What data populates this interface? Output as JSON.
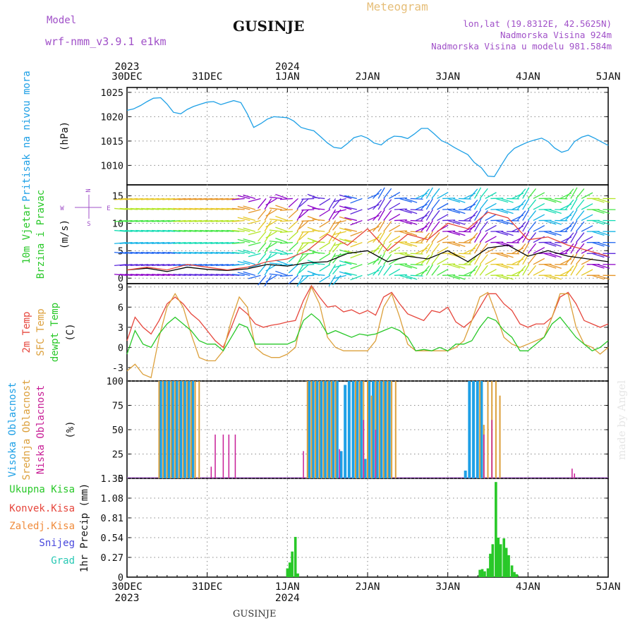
{
  "header": {
    "model_label": "Model",
    "model_name": "wrf-nmm_v3.9.1 e1km",
    "station": "GUSINJE",
    "product": "Meteogram",
    "lonlat": "lon,lat (19.8312E, 42.5625N)",
    "elevation": "Nadmorska Visina 924m",
    "model_elevation": "Nadmorska Visina u modelu 981.584m",
    "watermark": "made by Angel",
    "footer_station": "GUSINJE"
  },
  "colors": {
    "pressure": "#1ea0e6",
    "temp2m": "#e6463c",
    "sfc_temp": "#dca03c",
    "dewpoint": "#28c828",
    "high_cloud": "#1ea0e6",
    "mid_cloud": "#dca03c",
    "low_cloud": "#c81e96",
    "total_precip": "#28c828",
    "conv_precip": "#e6463c",
    "freezing_precip": "#f08c3c",
    "snow": "#4646dc",
    "hail": "#28c8b4",
    "title_purple": "#a050c8",
    "title_gold": "#e6be78"
  },
  "time_axis": {
    "top_years": [
      {
        "label": "2023",
        "day": 0
      },
      {
        "label": "2024",
        "day": 2
      }
    ],
    "days": [
      "30DEC",
      "31DEC",
      "1JAN",
      "2JAN",
      "3JAN",
      "4JAN",
      "5JAN"
    ],
    "bottom_years": [
      {
        "label": "2023",
        "day": 0
      },
      {
        "label": "2024",
        "day": 2
      }
    ]
  },
  "chart_data": [
    {
      "type": "line",
      "panel": "pressure",
      "ylabel_left": "Pritisak na nivou mora",
      "ylabel_unit": "(hPa)",
      "ylim": [
        1006,
        1026
      ],
      "yticks": [
        1010,
        1015,
        1020,
        1025
      ],
      "series": [
        {
          "x": [
            0,
            0.08,
            0.17,
            0.25,
            0.33,
            0.42,
            0.5,
            0.58,
            0.67,
            0.75,
            0.83,
            0.92,
            1.0,
            1.08,
            1.17,
            1.25,
            1.33,
            1.42,
            1.5,
            1.58,
            1.67,
            1.75,
            1.83,
            1.92,
            2.0,
            2.08,
            2.17,
            2.25,
            2.33,
            2.42,
            2.5,
            2.58,
            2.67,
            2.75,
            2.83,
            2.92,
            3.0,
            3.08,
            3.17,
            3.25,
            3.33,
            3.42,
            3.5,
            3.58,
            3.67,
            3.75,
            3.83,
            3.92,
            4.0,
            4.08,
            4.17,
            4.25,
            4.33,
            4.42,
            4.5,
            4.58,
            4.67,
            4.75,
            4.83,
            4.92,
            5.0,
            5.08,
            5.17,
            5.25,
            5.33,
            5.42,
            5.5,
            5.58,
            5.67,
            5.75,
            5.83,
            5.92,
            6.0
          ],
          "y": [
            1021.3,
            1021.6,
            1022.3,
            1023.1,
            1023.8,
            1023.9,
            1022.6,
            1020.9,
            1020.6,
            1021.5,
            1022.1,
            1022.6,
            1023.0,
            1023.1,
            1022.5,
            1022.9,
            1023.3,
            1022.9,
            1020.6,
            1017.8,
            1018.6,
            1019.5,
            1020.0,
            1019.9,
            1019.8,
            1019.1,
            1017.8,
            1017.4,
            1017.1,
            1015.8,
            1014.6,
            1013.7,
            1013.5,
            1014.5,
            1015.7,
            1016.1,
            1015.6,
            1014.6,
            1014.2,
            1015.3,
            1016.0,
            1015.9,
            1015.5,
            1016.4,
            1017.6,
            1017.6,
            1016.5,
            1015.1,
            1014.5,
            1013.7,
            1012.9,
            1012.2,
            1010.6,
            1009.5,
            1007.8,
            1007.7,
            1010.1,
            1012.2,
            1013.5,
            1014.2,
            1014.8,
            1015.2,
            1015.6,
            1014.9,
            1013.6,
            1012.7,
            1013.1,
            1014.9,
            1015.8,
            1016.2,
            1015.6,
            1014.8,
            1014.1
          ]
        }
      ]
    },
    {
      "type": "vector",
      "panel": "wind",
      "ylabel_left": "10m Vjetar Brzina i Pravac",
      "ylabel_unit": "(m/s)",
      "ylim": [
        -1,
        17
      ],
      "yticks": [
        0,
        5,
        10,
        15
      ],
      "compass": {
        "n": "N",
        "s": "S",
        "w": "W",
        "e": "E"
      },
      "speed_x": [
        0,
        0.25,
        0.5,
        0.75,
        1.0,
        1.25,
        1.5,
        1.75,
        2.0,
        2.25,
        2.5,
        2.75,
        3.0,
        3.25,
        3.5,
        3.75,
        4.0,
        4.25,
        4.5,
        4.75,
        5.0,
        5.25,
        5.5,
        5.75,
        6.0
      ],
      "speed_y": [
        1.5,
        1.8,
        1.2,
        2.0,
        1.6,
        1.4,
        1.7,
        2.5,
        2.2,
        2.8,
        3.0,
        4.5,
        5.0,
        3.0,
        4.0,
        3.5,
        5.0,
        3.0,
        5.5,
        6.0,
        4.0,
        5.0,
        4.0,
        3.5,
        3.0
      ],
      "gust_y": [
        1.5,
        2.0,
        1.5,
        2.5,
        2.0,
        1.5,
        2.0,
        3.0,
        3.5,
        5.0,
        8.0,
        6.0,
        9.0,
        5.0,
        8.0,
        7.0,
        10.0,
        9.0,
        12.0,
        11.0,
        7.0,
        7.5,
        6.0,
        5.0,
        4.0
      ]
    },
    {
      "type": "line",
      "panel": "temperature",
      "ylabel_left": [
        "2m Temp",
        "SFC Temp",
        "dewpt Temp"
      ],
      "ylabel_unit": "(C)",
      "ylim": [
        -5,
        9.5
      ],
      "yticks": [
        -3,
        0,
        3,
        6,
        9
      ],
      "series": [
        {
          "name": "2m Temp",
          "x": [
            0,
            0.1,
            0.2,
            0.3,
            0.4,
            0.5,
            0.6,
            0.7,
            0.8,
            0.9,
            1.0,
            1.1,
            1.2,
            1.3,
            1.4,
            1.5,
            1.6,
            1.7,
            1.8,
            1.9,
            2.0,
            2.1,
            2.2,
            2.3,
            2.4,
            2.5,
            2.6,
            2.7,
            2.8,
            2.9,
            3.0,
            3.1,
            3.2,
            3.3,
            3.4,
            3.5,
            3.6,
            3.7,
            3.8,
            3.9,
            4.0,
            4.1,
            4.2,
            4.3,
            4.4,
            4.5,
            4.6,
            4.7,
            4.8,
            4.9,
            5.0,
            5.1,
            5.2,
            5.3,
            5.4,
            5.5,
            5.6,
            5.7,
            5.8,
            5.9,
            6.0
          ],
          "y": [
            1.0,
            4.5,
            3.0,
            2.0,
            4.0,
            6.5,
            7.5,
            6.5,
            5.0,
            4.0,
            2.5,
            1.0,
            0.0,
            3.0,
            6.0,
            5.0,
            3.5,
            3.0,
            3.3,
            3.5,
            3.8,
            4.0,
            7.0,
            9.2,
            7.5,
            6.0,
            6.2,
            5.3,
            5.6,
            5.0,
            5.5,
            4.8,
            7.5,
            8.2,
            6.5,
            5.0,
            4.5,
            4.0,
            5.5,
            5.2,
            6.0,
            3.8,
            3.0,
            4.0,
            6.0,
            8.0,
            8.0,
            6.5,
            5.5,
            3.5,
            3.0,
            3.5,
            3.5,
            4.5,
            7.5,
            8.2,
            6.5,
            4.0,
            3.5,
            3.0,
            3.5
          ]
        },
        {
          "name": "SFC Temp",
          "x": [
            0,
            0.1,
            0.2,
            0.3,
            0.4,
            0.5,
            0.6,
            0.7,
            0.8,
            0.9,
            1.0,
            1.1,
            1.2,
            1.3,
            1.4,
            1.5,
            1.6,
            1.7,
            1.8,
            1.9,
            2.0,
            2.1,
            2.2,
            2.3,
            2.4,
            2.5,
            2.6,
            2.7,
            2.8,
            2.9,
            3.0,
            3.1,
            3.2,
            3.3,
            3.4,
            3.5,
            3.6,
            3.7,
            3.8,
            3.9,
            4.0,
            4.1,
            4.2,
            4.3,
            4.4,
            4.5,
            4.6,
            4.7,
            4.8,
            4.9,
            5.0,
            5.1,
            5.2,
            5.3,
            5.4,
            5.5,
            5.6,
            5.7,
            5.8,
            5.9,
            6.0
          ],
          "y": [
            -3.5,
            -2.5,
            -4.0,
            -4.5,
            1.5,
            6.0,
            8.0,
            6.0,
            2.0,
            -1.5,
            -2.0,
            -2.0,
            -0.5,
            4.0,
            7.5,
            6.0,
            0.0,
            -1.0,
            -1.5,
            -1.5,
            -1.0,
            0.0,
            5.5,
            9.0,
            6.5,
            1.5,
            0.0,
            -0.5,
            -0.5,
            -0.5,
            -0.5,
            1.0,
            6.0,
            8.0,
            4.5,
            0.5,
            -0.5,
            -0.5,
            -0.5,
            -0.5,
            -0.5,
            0.0,
            1.0,
            4.0,
            7.5,
            8.2,
            5.0,
            1.5,
            0.5,
            0.0,
            0.5,
            1.0,
            1.5,
            4.5,
            8.0,
            8.0,
            3.0,
            0.5,
            0.0,
            -1.0,
            0.0
          ]
        },
        {
          "name": "dewpt Temp",
          "x": [
            0,
            0.1,
            0.2,
            0.3,
            0.4,
            0.5,
            0.6,
            0.7,
            0.8,
            0.9,
            1.0,
            1.1,
            1.2,
            1.3,
            1.4,
            1.5,
            1.6,
            1.7,
            1.8,
            1.9,
            2.0,
            2.1,
            2.2,
            2.3,
            2.4,
            2.5,
            2.6,
            2.7,
            2.8,
            2.9,
            3.0,
            3.1,
            3.2,
            3.3,
            3.4,
            3.5,
            3.6,
            3.7,
            3.8,
            3.9,
            4.0,
            4.1,
            4.2,
            4.3,
            4.4,
            4.5,
            4.6,
            4.7,
            4.8,
            4.9,
            5.0,
            5.1,
            5.2,
            5.3,
            5.4,
            5.5,
            5.6,
            5.7,
            5.8,
            5.9,
            6.0
          ],
          "y": [
            -1.0,
            2.5,
            0.5,
            0.0,
            2.0,
            3.5,
            4.5,
            3.5,
            2.5,
            1.0,
            0.5,
            0.5,
            -0.5,
            1.5,
            3.5,
            3.0,
            0.5,
            0.5,
            0.5,
            0.5,
            0.5,
            1.0,
            4.0,
            5.0,
            4.0,
            2.0,
            2.5,
            2.0,
            1.5,
            2.0,
            1.8,
            2.0,
            2.5,
            3.0,
            2.5,
            1.5,
            -0.5,
            -0.3,
            -0.5,
            0.0,
            -0.5,
            0.5,
            0.5,
            1.0,
            3.0,
            4.5,
            4.0,
            2.5,
            1.5,
            -0.5,
            -0.5,
            0.5,
            1.5,
            3.5,
            4.5,
            3.0,
            1.5,
            0.5,
            -0.5,
            0.0,
            1.0
          ]
        }
      ]
    },
    {
      "type": "bar",
      "panel": "cloud",
      "ylabel_left": [
        "Visoka Oblacnost",
        "Srednja Oblacnost",
        "Niska Oblacnost"
      ],
      "ylabel_unit": "(%)",
      "ylim": [
        0,
        100
      ],
      "yticks": [
        0,
        25,
        50,
        75,
        100
      ],
      "series": [
        {
          "name": "Visoka Oblacnost",
          "x": [
            0.42,
            0.47,
            0.52,
            0.57,
            0.62,
            0.67,
            0.72,
            0.77,
            0.82,
            2.27,
            2.32,
            2.37,
            2.42,
            2.47,
            2.52,
            2.57,
            2.62,
            2.67,
            2.72,
            2.77,
            2.82,
            2.87,
            2.92,
            2.97,
            3.02,
            3.07,
            3.12,
            3.17,
            3.22,
            3.27,
            4.22,
            4.27,
            4.32,
            4.37,
            4.42
          ],
          "y": [
            100,
            100,
            100,
            100,
            100,
            100,
            100,
            100,
            100,
            100,
            100,
            100,
            100,
            100,
            100,
            100,
            100,
            28,
            96,
            100,
            100,
            100,
            100,
            20,
            100,
            100,
            100,
            100,
            100,
            100,
            8,
            100,
            100,
            100,
            100
          ]
        },
        {
          "name": "Srednja Oblacnost",
          "x": [
            0.4,
            0.45,
            0.5,
            0.55,
            0.6,
            0.65,
            0.7,
            0.75,
            0.8,
            0.85,
            0.9,
            2.25,
            2.3,
            2.35,
            2.4,
            2.45,
            2.5,
            2.55,
            2.6,
            2.85,
            2.9,
            2.95,
            3.0,
            3.05,
            3.1,
            3.15,
            3.2,
            3.25,
            3.3,
            3.35,
            4.4,
            4.45,
            4.5,
            4.55,
            4.6,
            4.65
          ],
          "y": [
            100,
            100,
            100,
            100,
            100,
            100,
            100,
            100,
            100,
            100,
            100,
            100,
            100,
            100,
            100,
            100,
            100,
            100,
            100,
            100,
            100,
            100,
            100,
            85,
            100,
            100,
            100,
            100,
            100,
            100,
            100,
            55,
            100,
            100,
            100,
            85
          ]
        },
        {
          "name": "Niska Oblacnost",
          "x": [
            1.05,
            1.1,
            1.2,
            1.27,
            1.35,
            2.2,
            2.65,
            2.95,
            3.1,
            4.45,
            4.55,
            5.55,
            5.58
          ],
          "y": [
            12,
            45,
            45,
            45,
            45,
            28,
            30,
            60,
            50,
            45,
            60,
            10,
            5
          ]
        }
      ]
    },
    {
      "type": "bar",
      "panel": "precip",
      "ylabel_left": [
        "Ukupna Kisa",
        "Konvek.Kisa",
        "Zaledj.Kisa",
        "Snijeg",
        "Grad"
      ],
      "ylabel_unit": "1hr Precip (mm)",
      "ylim": [
        0,
        1.35
      ],
      "yticks": [
        0,
        0.27,
        0.54,
        0.81,
        1.08,
        1.35
      ],
      "ytick_labels": [
        "0",
        "0.27",
        "0.54",
        "0.81",
        "1.08",
        "1.35"
      ],
      "series": [
        {
          "name": "Ukupna Kisa",
          "x": [
            2.0,
            2.03,
            2.06,
            2.1,
            2.13,
            4.4,
            4.43,
            4.46,
            4.5,
            4.53,
            4.56,
            4.6,
            4.63,
            4.66,
            4.7,
            4.73,
            4.76,
            4.8,
            4.83,
            4.86
          ],
          "y": [
            0.12,
            0.2,
            0.35,
            0.55,
            0.05,
            0.1,
            0.11,
            0.08,
            0.12,
            0.32,
            0.45,
            1.3,
            0.54,
            0.45,
            0.53,
            0.4,
            0.3,
            0.16,
            0.07,
            0.04
          ]
        }
      ]
    }
  ]
}
